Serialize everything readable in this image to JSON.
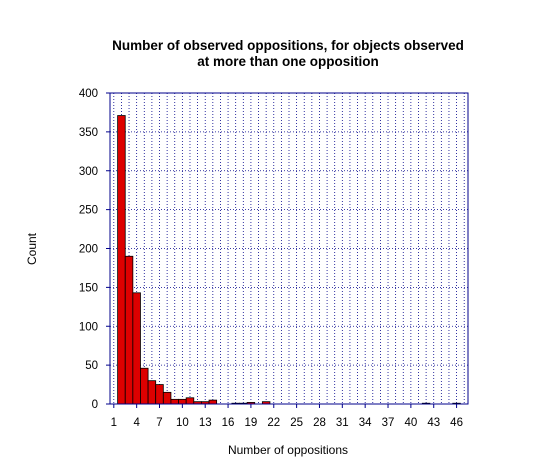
{
  "chart_data": {
    "type": "bar",
    "title_line1": "Number of observed oppositions, for objects observed",
    "title_line2": "at more than one opposition",
    "xlabel": "Number of oppositions",
    "ylabel": "Count",
    "xlim": [
      0.5,
      47.5
    ],
    "ylim": [
      0,
      400
    ],
    "x_ticks": [
      1,
      4,
      7,
      10,
      13,
      16,
      19,
      22,
      25,
      28,
      31,
      34,
      37,
      40,
      43,
      46
    ],
    "y_ticks": [
      0,
      50,
      100,
      150,
      200,
      250,
      300,
      350,
      400
    ],
    "grid": true,
    "legend": "none",
    "bar_color": "#dd0000",
    "bar_edge_color": "#000000",
    "grid_color": "#00008b",
    "axis_color": "#00008b",
    "x": [
      2,
      3,
      4,
      5,
      6,
      7,
      8,
      9,
      10,
      11,
      12,
      13,
      14,
      17,
      18,
      19,
      21,
      42,
      46
    ],
    "values": [
      371,
      190,
      143,
      46,
      30,
      25,
      15,
      6,
      6,
      8,
      3,
      3,
      5,
      1,
      1,
      2,
      3,
      1,
      1
    ]
  }
}
